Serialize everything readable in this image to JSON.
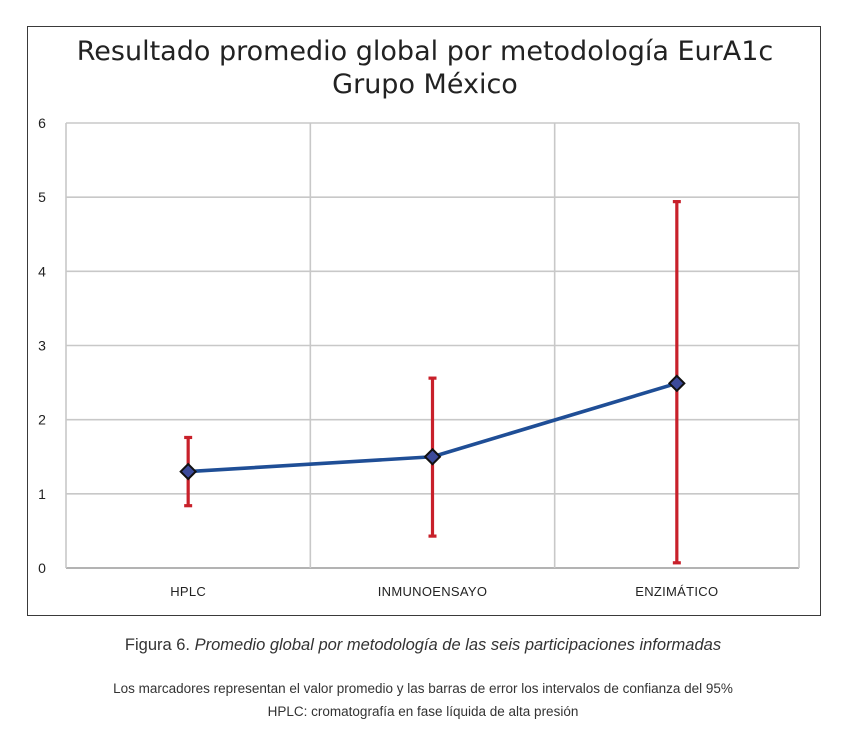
{
  "chart_data": {
    "type": "line",
    "title_lines": [
      "Resultado promedio global por metodología EurA1c",
      "Grupo México"
    ],
    "xlabel": "",
    "ylabel": "",
    "categories": [
      "HPLC",
      "INMUNOENSAYO",
      "ENZIMÁTICO"
    ],
    "series": [
      {
        "values": [
          1.3,
          1.5,
          2.49
        ],
        "error_low": [
          0.84,
          0.43,
          0.07
        ],
        "error_high": [
          1.76,
          2.56,
          4.94
        ]
      }
    ],
    "ylim": [
      0,
      6
    ],
    "yticks": [
      "0",
      "1",
      "2",
      "3",
      "4",
      "5",
      "6"
    ],
    "grid": true,
    "legend": "none",
    "colors": {
      "line": "#1f4e96",
      "marker_fill": "#3c4a9a",
      "marker_stroke": "#111111",
      "error_bar": "#c8202a",
      "grid": "#c8c8c8"
    }
  },
  "caption": {
    "label": "Figura 6.",
    "text": "Promedio global por metodología de las seis participaciones informadas"
  },
  "notes": {
    "line1": "Los marcadores representan el valor promedio y las barras de error los intervalos de confianza del 95%",
    "line2": "HPLC: cromatografía en fase líquida de alta presión"
  }
}
